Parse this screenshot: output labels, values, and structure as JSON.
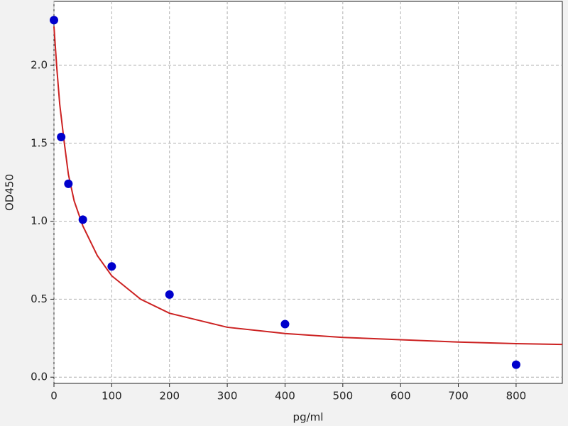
{
  "chart_data": {
    "type": "scatter",
    "xlabel": "pg/ml",
    "ylabel": "OD450",
    "xlim": [
      0,
      880
    ],
    "ylim": [
      -0.04,
      2.41
    ],
    "xticks": [
      0,
      100,
      200,
      300,
      400,
      500,
      600,
      700,
      800
    ],
    "yticks": [
      {
        "value": 0,
        "label": "0.0"
      },
      0.5,
      {
        "value": 1,
        "label": "1.0"
      },
      1.5,
      {
        "value": 2,
        "label": "2.0"
      }
    ],
    "grid": true,
    "series": [
      {
        "color": "#0000cc",
        "x": [
          0,
          12.5,
          25,
          50,
          100,
          200,
          400,
          800
        ],
        "values": [
          2.29,
          1.54,
          1.24,
          1.01,
          0.71,
          0.53,
          0.34,
          0.08
        ]
      },
      {
        "color": "#cc2222",
        "line": true,
        "x": [
          0,
          5,
          10,
          18,
          25,
          35,
          50,
          75,
          100,
          150,
          200,
          300,
          400,
          500,
          600,
          700,
          800,
          880
        ],
        "values": [
          2.25,
          1.98,
          1.75,
          1.5,
          1.3,
          1.13,
          0.97,
          0.78,
          0.65,
          0.5,
          0.41,
          0.32,
          0.28,
          0.255,
          0.24,
          0.225,
          0.215,
          0.21
        ]
      }
    ]
  }
}
